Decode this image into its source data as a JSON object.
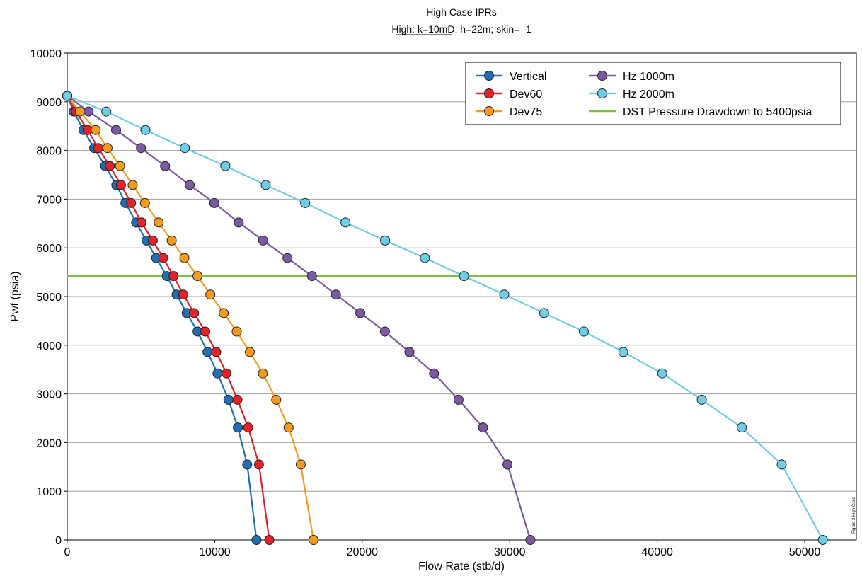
{
  "chart_data": {
    "type": "line",
    "title": "High Case IPRs",
    "subtitle": "High: k=10mD; h=22m; skin= -1",
    "subtitle_underlined": "k=10mD;",
    "xlabel": "Flow Rate (stb/d)",
    "ylabel": "Pwf (psia)",
    "xlim": [
      0,
      53500
    ],
    "ylim": [
      0,
      10000
    ],
    "xticks": [
      0,
      10000,
      20000,
      30000,
      40000,
      50000
    ],
    "yticks": [
      0,
      1000,
      2000,
      3000,
      4000,
      5000,
      6000,
      7000,
      8000,
      9000,
      10000
    ],
    "grid": "horizontal",
    "legend_position": "top-right",
    "side_note": "Figure 3 High Case",
    "series": [
      {
        "name": "Vertical",
        "color": "#1f6fb3",
        "marker": true,
        "x": [
          0,
          440,
          1100,
          1830,
          2570,
          3330,
          3950,
          4670,
          5370,
          6030,
          6750,
          7420,
          8100,
          8840,
          9510,
          10190,
          10930,
          11570,
          12200,
          12830
        ],
        "y": [
          9120,
          8800,
          8420,
          8050,
          7680,
          7290,
          6920,
          6520,
          6150,
          5790,
          5420,
          5040,
          4660,
          4280,
          3860,
          3420,
          2880,
          2310,
          1550,
          0
        ]
      },
      {
        "name": "Dev60",
        "color": "#e32229",
        "marker": true,
        "x": [
          0,
          590,
          1380,
          2100,
          2890,
          3640,
          4330,
          5040,
          5800,
          6510,
          7200,
          7870,
          8600,
          9360,
          10100,
          10800,
          11540,
          12270,
          13000,
          13700
        ],
        "y": [
          9120,
          8800,
          8420,
          8050,
          7680,
          7290,
          6920,
          6520,
          6150,
          5790,
          5420,
          5040,
          4660,
          4280,
          3860,
          3420,
          2880,
          2310,
          1550,
          0
        ]
      },
      {
        "name": "Dev75",
        "color": "#f39c1f",
        "marker": true,
        "x": [
          0,
          860,
          1930,
          2730,
          3580,
          4440,
          5270,
          6200,
          7080,
          7940,
          8830,
          9700,
          10610,
          11490,
          12380,
          13260,
          14170,
          15010,
          15830,
          16700
        ],
        "y": [
          9120,
          8800,
          8420,
          8050,
          7680,
          7290,
          6920,
          6520,
          6150,
          5790,
          5420,
          5040,
          4660,
          4280,
          3860,
          3420,
          2880,
          2310,
          1550,
          0
        ]
      },
      {
        "name": "Hz 1000m",
        "color": "#7b59a4",
        "marker": true,
        "x": [
          0,
          1450,
          3310,
          5000,
          6630,
          8300,
          9970,
          11630,
          13280,
          14930,
          16590,
          18220,
          19870,
          21540,
          23200,
          24870,
          26530,
          28190,
          29850,
          31400
        ],
        "y": [
          9120,
          8800,
          8420,
          8050,
          7680,
          7290,
          6920,
          6520,
          6150,
          5790,
          5420,
          5040,
          4660,
          4280,
          3860,
          3420,
          2880,
          2310,
          1550,
          0
        ]
      },
      {
        "name": "Hz 2000m",
        "color": "#6fcde6",
        "marker": true,
        "x": [
          0,
          2650,
          5300,
          7970,
          10720,
          13460,
          16130,
          18860,
          21550,
          24250,
          26900,
          29630,
          32330,
          35020,
          37700,
          40340,
          43020,
          45730,
          48440,
          51230
        ],
        "y": [
          9120,
          8800,
          8420,
          8050,
          7680,
          7290,
          6920,
          6520,
          6150,
          5790,
          5420,
          5040,
          4660,
          4280,
          3860,
          3420,
          2880,
          2310,
          1550,
          0
        ]
      },
      {
        "name": "DST Pressure Drawdown to 5400psia",
        "color": "#7fc241",
        "marker": false,
        "x": [
          0,
          53500
        ],
        "y": [
          5420,
          5420
        ]
      }
    ]
  }
}
